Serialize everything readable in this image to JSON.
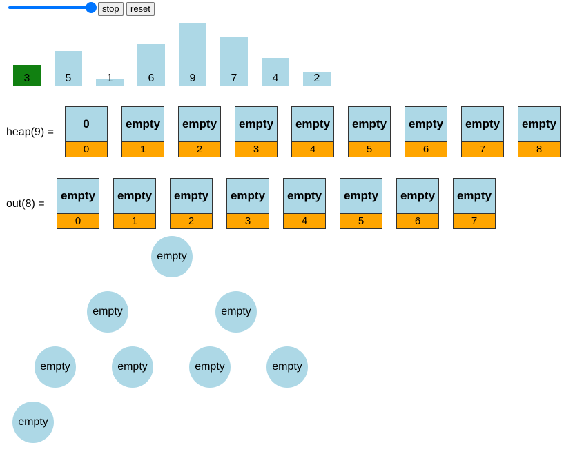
{
  "controls": {
    "slider_value": 1.0,
    "stop_label": "stop",
    "reset_label": "reset"
  },
  "colors": {
    "bar": "#add8e6",
    "bar_active": "#118011",
    "cell_value": "#add8e6",
    "cell_index": "#ffa500",
    "node": "#add8e6",
    "slider": "#0075ff"
  },
  "bars": [
    {
      "label": "3",
      "value": 3,
      "active": true
    },
    {
      "label": "5",
      "value": 5,
      "active": false
    },
    {
      "label": "1",
      "value": 1,
      "active": false
    },
    {
      "label": "6",
      "value": 6,
      "active": false
    },
    {
      "label": "9",
      "value": 9,
      "active": false
    },
    {
      "label": "7",
      "value": 7,
      "active": false
    },
    {
      "label": "4",
      "value": 4,
      "active": false
    },
    {
      "label": "2",
      "value": 2,
      "active": false
    }
  ],
  "heap": {
    "label": "heap(9) =",
    "cells": [
      {
        "value": "0",
        "index": "0"
      },
      {
        "value": "empty",
        "index": "1"
      },
      {
        "value": "empty",
        "index": "2"
      },
      {
        "value": "empty",
        "index": "3"
      },
      {
        "value": "empty",
        "index": "4"
      },
      {
        "value": "empty",
        "index": "5"
      },
      {
        "value": "empty",
        "index": "6"
      },
      {
        "value": "empty",
        "index": "7"
      },
      {
        "value": "empty",
        "index": "8"
      }
    ]
  },
  "out": {
    "label": "out(8) =",
    "cells": [
      {
        "value": "empty",
        "index": "0"
      },
      {
        "value": "empty",
        "index": "1"
      },
      {
        "value": "empty",
        "index": "2"
      },
      {
        "value": "empty",
        "index": "3"
      },
      {
        "value": "empty",
        "index": "4"
      },
      {
        "value": "empty",
        "index": "5"
      },
      {
        "value": "empty",
        "index": "6"
      },
      {
        "value": "empty",
        "index": "7"
      }
    ]
  },
  "tree": {
    "nodes": [
      "empty",
      "empty",
      "empty",
      "empty",
      "empty",
      "empty",
      "empty",
      "empty"
    ]
  }
}
